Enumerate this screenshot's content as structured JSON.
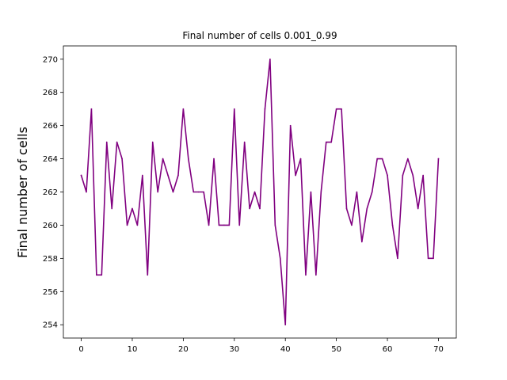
{
  "chart_data": {
    "type": "line",
    "title": "Final number of cells 0.001_0.99",
    "xlabel": "",
    "ylabel": "Final number of cells",
    "xlim": [
      -3.5,
      73.5
    ],
    "ylim": [
      253.2,
      270.8
    ],
    "xticks": [
      0,
      10,
      20,
      30,
      40,
      50,
      60,
      70
    ],
    "yticks": [
      254,
      256,
      258,
      260,
      262,
      264,
      266,
      268,
      270
    ],
    "grid": false,
    "color": "#800080",
    "series": [
      {
        "x": [
          0,
          1,
          2,
          3,
          4,
          5,
          6,
          7,
          8,
          9,
          10,
          11,
          12,
          13,
          14,
          15,
          16,
          17,
          18,
          19,
          20,
          21,
          22,
          23,
          24,
          25,
          26,
          27,
          28,
          29,
          30,
          31,
          32,
          33,
          34,
          35,
          36,
          37,
          38,
          39,
          40,
          41,
          42,
          43,
          44,
          45,
          46,
          47,
          48,
          49,
          50,
          51,
          52,
          53,
          54,
          55,
          56,
          57,
          58,
          59,
          60,
          61,
          62,
          63,
          64,
          65,
          66,
          67,
          68,
          69,
          70
        ],
        "values": [
          263,
          262,
          267,
          257,
          257,
          265,
          261,
          265,
          264,
          260,
          261,
          260,
          263,
          257,
          265,
          262,
          264,
          263,
          262,
          263,
          267,
          264,
          262,
          262,
          262,
          260,
          264,
          260,
          260,
          260,
          267,
          260,
          265,
          261,
          262,
          261,
          267,
          270,
          260,
          258,
          254,
          266,
          263,
          264,
          257,
          262,
          257,
          262,
          265,
          265,
          267,
          267,
          261,
          260,
          262,
          259,
          261,
          262,
          264,
          264,
          263,
          260,
          258,
          263,
          264,
          263,
          261,
          263,
          258,
          258,
          264
        ]
      }
    ]
  }
}
